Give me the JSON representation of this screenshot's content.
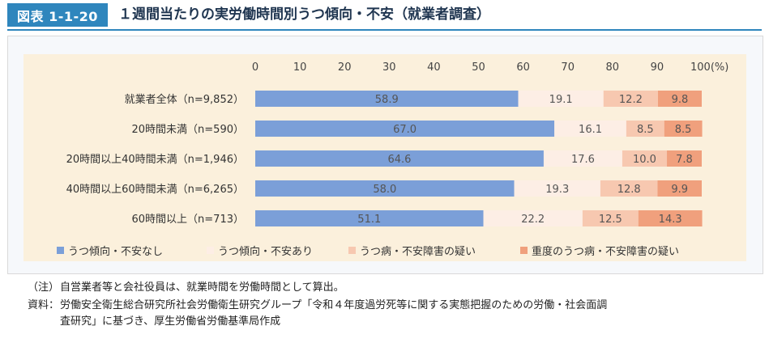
{
  "figure": {
    "label": "図表 1-1-20",
    "title": "１週間当たりの実労働時間別うつ傾向・不安（就業者調査）"
  },
  "colors": {
    "header_accent": "#2f86bd",
    "plot_background": "#fbf0dc",
    "series": [
      "#7b9fd8",
      "#fdeee5",
      "#f7c8b0",
      "#f0a07d"
    ]
  },
  "chart_data": {
    "type": "bar",
    "orientation": "horizontal",
    "stacked": true,
    "categories": [
      "就業者全体（n=9,852）",
      "20時間未満（n=590）",
      "20時間以上40時間未満（n=1,946）",
      "40時間以上60時間未満（n=6,265）",
      "60時間以上（n=713）"
    ],
    "series": [
      {
        "name": "うつ傾向・不安なし",
        "values": [
          58.9,
          67.0,
          64.6,
          58.0,
          51.1
        ]
      },
      {
        "name": "うつ傾向・不安あり",
        "values": [
          19.1,
          16.1,
          17.6,
          19.3,
          22.2
        ]
      },
      {
        "name": "うつ病・不安障害の疑い",
        "values": [
          12.2,
          8.5,
          10.0,
          12.8,
          12.5
        ]
      },
      {
        "name": "重度のうつ病・不安障害の疑い",
        "values": [
          9.8,
          8.5,
          7.8,
          9.9,
          14.3
        ]
      }
    ],
    "xlim": [
      0,
      100
    ],
    "x_ticks": [
      "0",
      "10",
      "20",
      "30",
      "40",
      "50",
      "60",
      "70",
      "80",
      "90",
      "100(%)"
    ],
    "legend_position": "bottom",
    "grid": false
  },
  "notes": {
    "note_head": "（注）",
    "note_text": "自営業者等と会社役員は、就業時間を労働時間として算出。",
    "source_head": "資料：",
    "source_line1": "労働安全衛生総合研究所社会労働衛生研究グループ「令和４年度過労死等に関する実態把握のための労働・社会面調",
    "source_line2": "査研究」に基づき、厚生労働省労働基準局作成"
  }
}
